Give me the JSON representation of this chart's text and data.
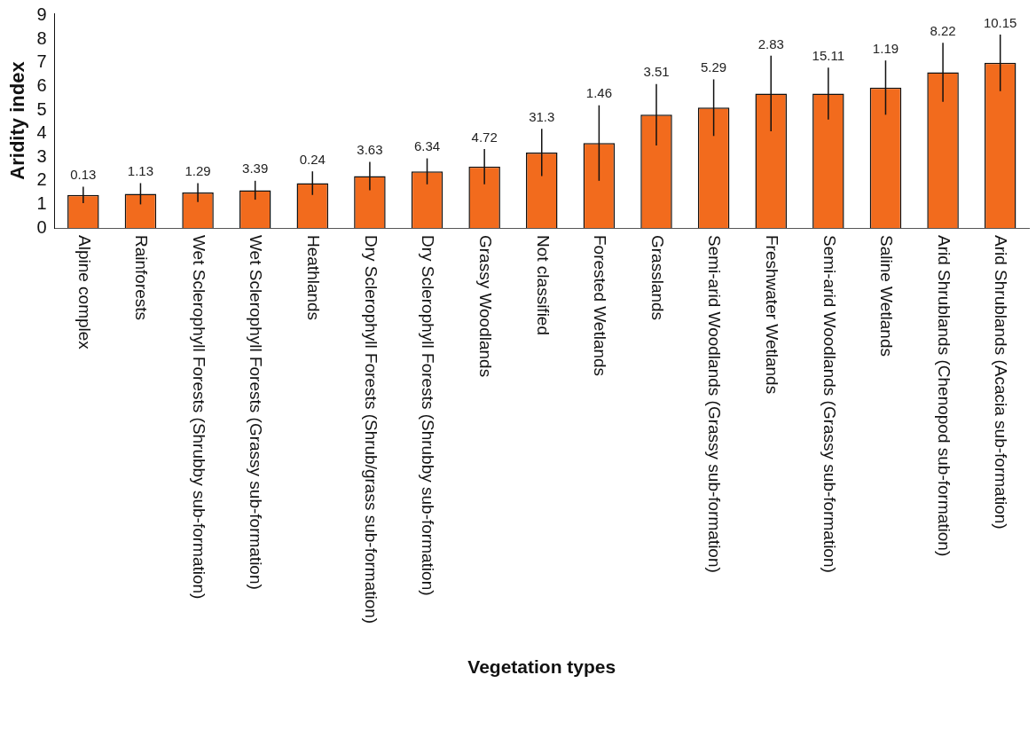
{
  "chart_data": {
    "type": "bar",
    "xlabel": "Vegetation types",
    "ylabel": "Aridity index",
    "categories": [
      "Alpine complex",
      "Rainforests",
      "Wet Sclerophyll Forests (Shrubby sub-formation)",
      "Wet Sclerophyll Forests (Grassy sub-formation)",
      "Heathlands",
      "Dry Sclerophyll Forests (Shrub/grass sub-formation)",
      "Dry Sclerophyll Forests (Shrubby sub-formation)",
      "Grassy Woodlands",
      "Not classified",
      "Forested Wetlands",
      "Grasslands",
      "Semi-arid Woodlands (Grassy sub-formation)",
      "Freshwater Wetlands",
      "Semi-arid Woodlands (Grassy sub-formation)",
      "Saline Wetlands",
      "Arid Shrublands (Chenopod sub-formation)",
      "Arid Shrublands (Acacia sub-formation)"
    ],
    "values": [
      1.4,
      1.45,
      1.5,
      1.6,
      1.9,
      2.2,
      2.4,
      2.6,
      3.2,
      3.6,
      4.8,
      5.1,
      5.7,
      5.7,
      5.95,
      6.6,
      7.0
    ],
    "errors": [
      0.35,
      0.45,
      0.4,
      0.4,
      0.5,
      0.6,
      0.55,
      0.75,
      1.0,
      1.6,
      1.3,
      1.2,
      1.6,
      1.1,
      1.15,
      1.25,
      1.2
    ],
    "color": "#f26b1d",
    "ylim": [
      0,
      9.1
    ],
    "yticks": [
      0,
      1,
      2,
      3,
      4,
      5,
      6,
      7,
      8,
      9
    ],
    "grid": false,
    "legend": false,
    "annotations": [
      {
        "text": "0.13",
        "x": "Alpine complex",
        "y": 1.75
      },
      {
        "text": "1.13",
        "x": "Rainforests",
        "y": 1.9
      },
      {
        "text": "1.29",
        "x": "Wet Sclerophyll Forests (Shrubby sub-formation)",
        "y": 1.9
      },
      {
        "text": "3.39",
        "x": "Wet Sclerophyll Forests (Grassy sub-formation)",
        "y": 2.0
      },
      {
        "text": "0.24",
        "x": "Heathlands",
        "y": 2.4
      },
      {
        "text": "3.63",
        "x": "Dry Sclerophyll Forests (Shrub/grass sub-formation)",
        "y": 2.8
      },
      {
        "text": "6.34",
        "x": "Dry Sclerophyll Forests (Shrubby sub-formation)",
        "y": 2.95
      },
      {
        "text": "4.72",
        "x": "Grassy Woodlands",
        "y": 3.35
      },
      {
        "text": "31.3",
        "x": "Not classified",
        "y": 4.2
      },
      {
        "text": "1.46",
        "x": "Forested Wetlands",
        "y": 5.2
      },
      {
        "text": "3.51",
        "x": "Grasslands",
        "y": 6.1
      },
      {
        "text": "5.29",
        "x": "Semi-arid Woodlands (Grassy sub-formation)",
        "y": 6.3
      },
      {
        "text": "2.83",
        "x": "Freshwater Wetlands",
        "y": 7.3
      },
      "15.11",
      {
        "text": "1.19",
        "x": "Saline Wetlands",
        "y": 7.1
      },
      {
        "text": "8.22",
        "x": "Arid Shrublands (Chenopod sub-formation)",
        "y": 7.85
      },
      {
        "text": "10.15",
        "x": "Arid Shrublands (Acacia sub-formation)",
        "y": 8.2
      }
    ]
  }
}
